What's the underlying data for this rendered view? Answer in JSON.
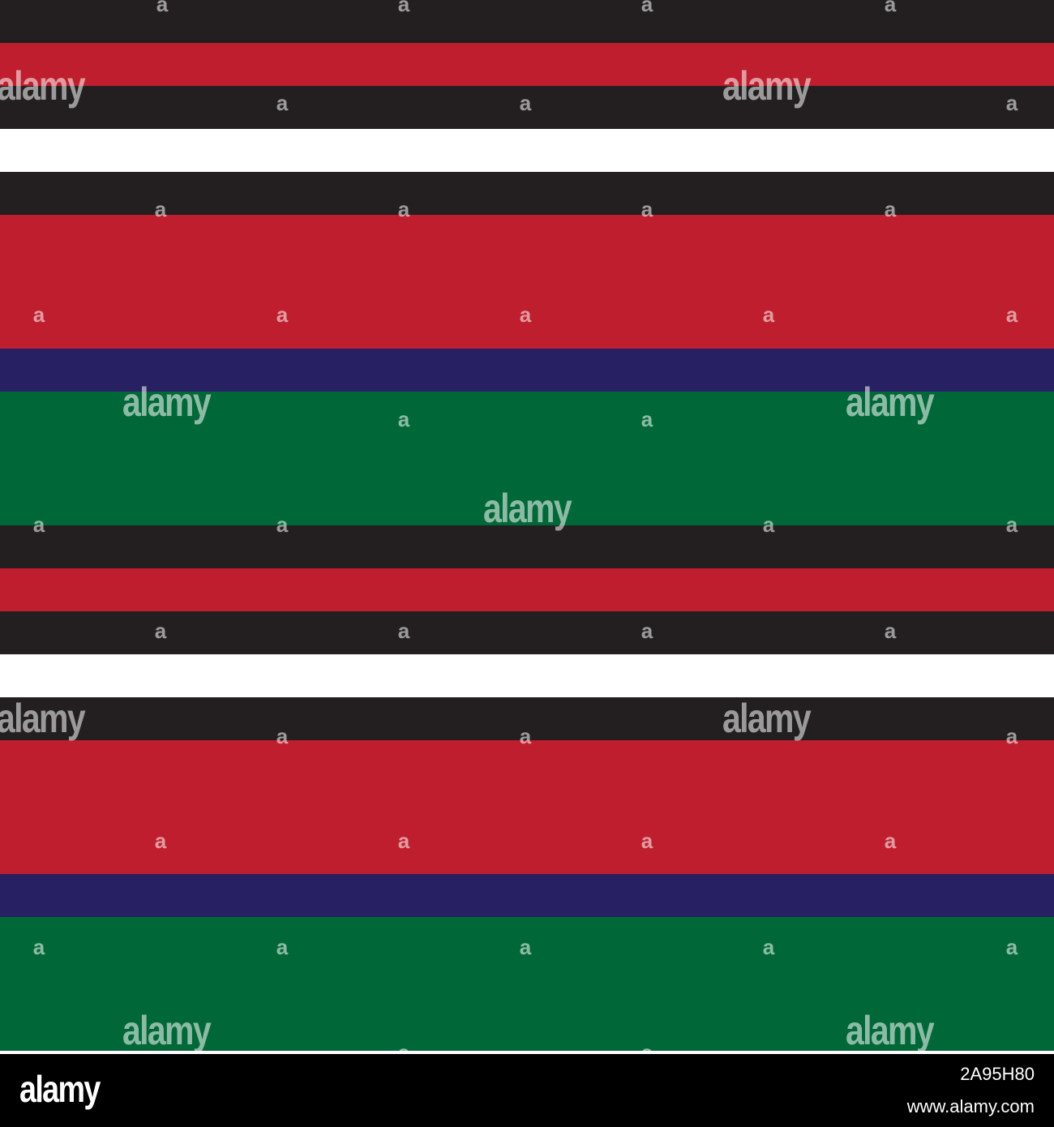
{
  "pattern": {
    "description": "",
    "colors": {
      "black": "#231f20",
      "red": "#be1e2d",
      "white": "#ffffff",
      "navy": "#272163",
      "green": "#006838"
    },
    "stripes": [
      "black",
      "red",
      "black",
      "white",
      "black",
      "red",
      "navy",
      "green",
      "black",
      "red",
      "black",
      "white",
      "black",
      "red",
      "navy",
      "green"
    ]
  },
  "watermark": {
    "word": "alamy",
    "glyph": "a"
  },
  "footer": {
    "logo": "alamy",
    "image_id": "2A95H80",
    "url": "www.alamy.com"
  }
}
